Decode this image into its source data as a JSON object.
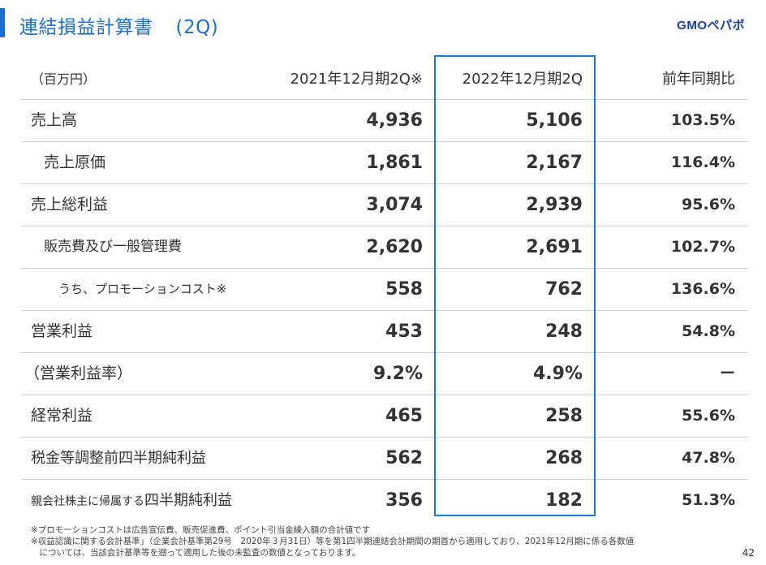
{
  "header": {
    "title": "連結損益計算書",
    "subtitle": "(2Q)",
    "logo": "GMOペパボ"
  },
  "table": {
    "columns": [
      "（百万円）",
      "2021年12月期2Q※",
      "2022年12月期2Q",
      "前年同期比"
    ],
    "rows": [
      {
        "label": "売上高",
        "v2021": "4,936",
        "v2022": "5,106",
        "yoy": "103.5%"
      },
      {
        "label": "売上原価",
        "v2021": "1,861",
        "v2022": "2,167",
        "yoy": "116.4%"
      },
      {
        "label": "売上総利益",
        "v2021": "3,074",
        "v2022": "2,939",
        "yoy": "95.6%"
      },
      {
        "label": "販売費及び一般管理費",
        "v2021": "2,620",
        "v2022": "2,691",
        "yoy": "102.7%"
      },
      {
        "label": "うち、プロモーションコスト※",
        "v2021": "558",
        "v2022": "762",
        "yoy": "136.6%"
      },
      {
        "label": "営業利益",
        "v2021": "453",
        "v2022": "248",
        "yoy": "54.8%"
      },
      {
        "label": "（営業利益率）",
        "v2021": "9.2%",
        "v2022": "4.9%",
        "yoy": "ー"
      },
      {
        "label": "経常利益",
        "v2021": "465",
        "v2022": "258",
        "yoy": "55.6%"
      },
      {
        "label": "税金等調整前四半期純利益",
        "v2021": "562",
        "v2022": "268",
        "yoy": "47.8%"
      },
      {
        "label_small": "親会社株主に帰属する",
        "label_large": "四半期純利益",
        "v2021": "356",
        "v2022": "182",
        "yoy": "51.3%"
      }
    ]
  },
  "footnotes": [
    "※プロモーションコストは広告宣伝費、販売促進費、ポイント引当金繰入額の合計値です",
    "※収益認識に関する会計基準」（企業会計基準第29号　2020年３月31日）等を第1四半期連結会計期間の期首から適用しており、2021年12月期に係る各数値",
    "　については、当該会計基準等を遡って適用した後の未監査の数値となっております。"
  ],
  "page_number": "42",
  "colors": {
    "accent": "#1a6fd6",
    "highlight_border": "#1a7be0",
    "text": "#333333"
  }
}
